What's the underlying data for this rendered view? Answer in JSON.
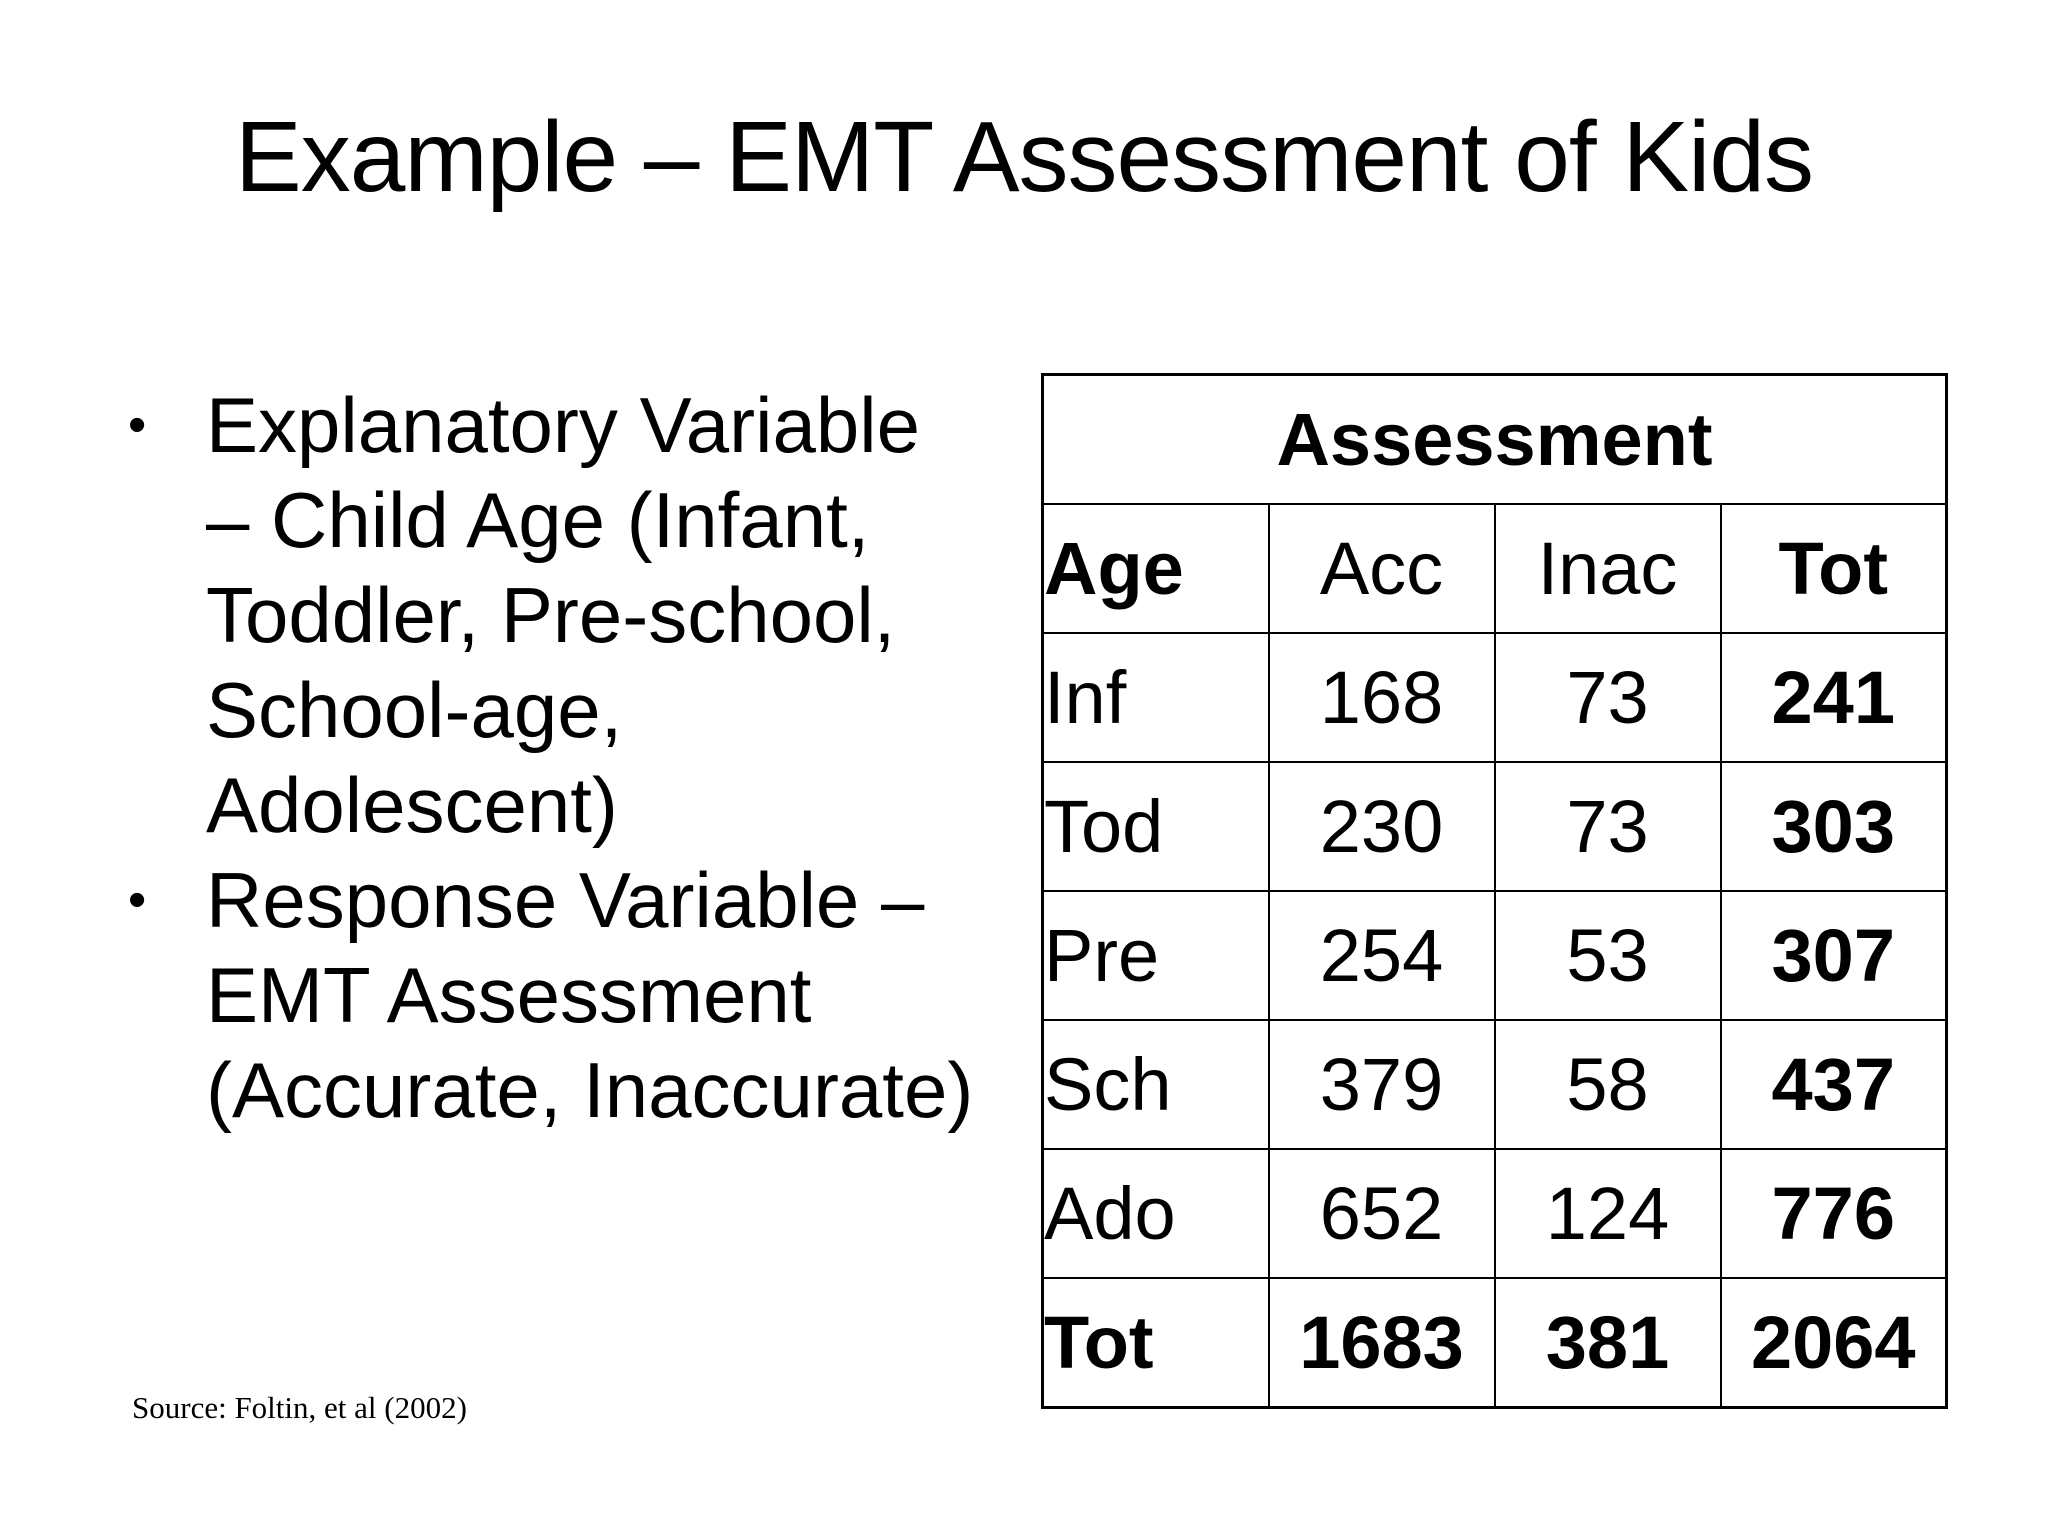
{
  "slide": {
    "title": "Example – EMT Assessment of Kids",
    "bullets": [
      "Explanatory Variable\n– Child Age (Infant,\nToddler, Pre-school,\nSchool-age,\nAdolescent)",
      "Response Variable –\nEMT Assessment\n(Accurate, Inaccurate)"
    ],
    "source": "Source: Foltin, et al (2002)"
  },
  "icons": {
    "bullet": "•"
  },
  "colors": {
    "background": "#ffffff",
    "text": "#000000",
    "table_border": "#000000"
  },
  "table": {
    "title": "Assessment",
    "columns": [
      "Age",
      "Acc",
      "Inac",
      "Tot"
    ],
    "rows": [
      {
        "age": "Inf",
        "acc": "168",
        "inac": "73",
        "tot": "241"
      },
      {
        "age": "Tod",
        "acc": "230",
        "inac": "73",
        "tot": "303"
      },
      {
        "age": "Pre",
        "acc": "254",
        "inac": "53",
        "tot": "307"
      },
      {
        "age": "Sch",
        "acc": "379",
        "inac": "58",
        "tot": "437"
      },
      {
        "age": "Ado",
        "acc": "652",
        "inac": "124",
        "tot": "776"
      },
      {
        "age": "Tot",
        "acc": "1683",
        "inac": "381",
        "tot": "2064"
      }
    ]
  }
}
